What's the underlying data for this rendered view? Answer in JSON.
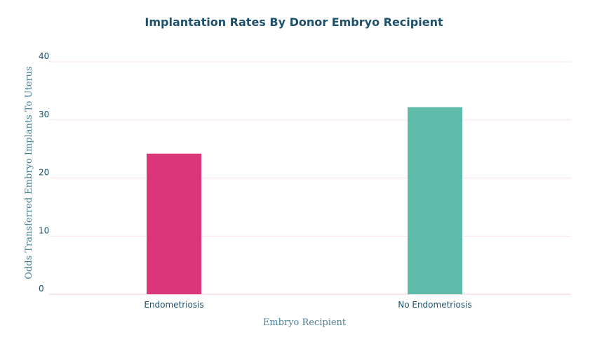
{
  "chart_data": {
    "type": "bar",
    "title": "Implantation Rates By Donor Embryo Recipient",
    "xlabel": "Embryo Recipient",
    "ylabel": "Odds Transferred Embryo Implants To Uterus",
    "categories": [
      "Endometriosis",
      "No Endometriosis"
    ],
    "values": [
      24.2,
      32.2
    ],
    "colors": [
      "#dc367a",
      "#5fbcaa"
    ],
    "ylim": [
      0,
      40
    ],
    "yticks": [
      0,
      10,
      20,
      30,
      40
    ],
    "grid": true,
    "legend": "none"
  }
}
